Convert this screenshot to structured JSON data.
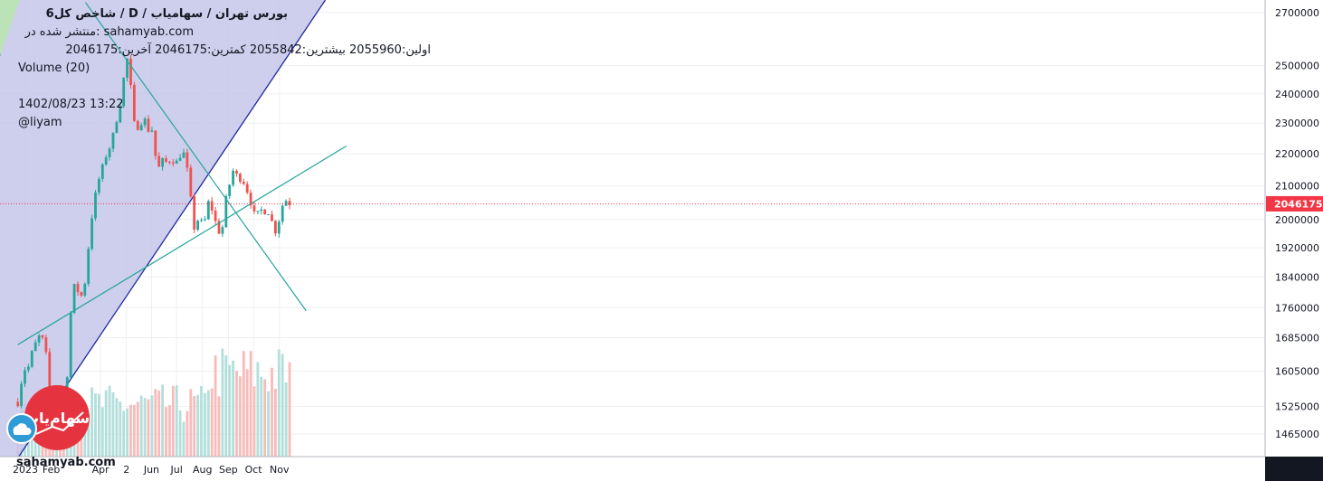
{
  "header": {
    "title": "شاخص کل6  / D  / بورس تهران / سهامیاب",
    "published_on": "منتشر شده در: sahamyab.com",
    "ohlc": "اولین:2055960  بیشترین:2055842  کمترین:2046175  آخرین:2046175",
    "volume_label": "Volume (20)",
    "datetime": "1402/08/23 13:22",
    "author": "@liyam"
  },
  "watermark": {
    "site": "sahamyab.com",
    "logo_text": "سهام‌یاب"
  },
  "colors": {
    "up": "#26a69a",
    "down": "#ef5350",
    "up_volume": "#b2dfdb",
    "down_volume": "#f8bbb9",
    "channel_fill": "#c5c5ea",
    "channel_line": "#1e2a9c",
    "trendline": "#26a69a",
    "last_price": "#f23645",
    "logo": "#e5343f"
  },
  "chart_data": {
    "type": "candlestick",
    "scale": "log",
    "timeframe": "D",
    "ylim": [
      1418000,
      2750000
    ],
    "y_ticks": [
      2700000,
      2500000,
      2400000,
      2300000,
      2200000,
      2100000,
      2000000,
      1920000,
      1840000,
      1760000,
      1685000,
      1605000,
      1525000,
      1465000
    ],
    "x_ticks": [
      {
        "label": "2023",
        "date": "2023-01-01"
      },
      {
        "label": "Feb",
        "date": "2023-02-01"
      },
      {
        "label": "Apr",
        "date": "2023-04-01"
      },
      {
        "label": "2",
        "date": "2023-05-02"
      },
      {
        "label": "Jun",
        "date": "2023-06-01"
      },
      {
        "label": "Jul",
        "date": "2023-07-01"
      },
      {
        "label": "Aug",
        "date": "2023-08-01"
      },
      {
        "label": "Sep",
        "date": "2023-09-01"
      },
      {
        "label": "Oct",
        "date": "2023-10-01"
      },
      {
        "label": "Nov",
        "date": "2023-11-01"
      }
    ],
    "last_price": 2046175,
    "close_path": [
      [
        "2022-12-23",
        1535000
      ],
      [
        "2022-12-28",
        1590000
      ],
      [
        "2023-01-02",
        1620000
      ],
      [
        "2023-01-06",
        1612000
      ],
      [
        "2023-01-10",
        1660000
      ],
      [
        "2023-01-14",
        1672000
      ],
      [
        "2023-01-18",
        1690000
      ],
      [
        "2023-01-22",
        1678000
      ],
      [
        "2023-01-26",
        1640000
      ],
      [
        "2023-01-30",
        1558000
      ],
      [
        "2023-02-03",
        1548000
      ],
      [
        "2023-02-08",
        1552000
      ],
      [
        "2023-02-13",
        1543000
      ],
      [
        "2023-02-17",
        1530000
      ],
      [
        "2023-02-20",
        1595000
      ],
      [
        "2023-02-23",
        1705000
      ],
      [
        "2023-02-26",
        1800000
      ],
      [
        "2023-03-01",
        1815000
      ],
      [
        "2023-03-06",
        1800000
      ],
      [
        "2023-03-11",
        1785000
      ],
      [
        "2023-03-15",
        1860000
      ],
      [
        "2023-03-20",
        1985000
      ],
      [
        "2023-03-25",
        2060000
      ],
      [
        "2023-03-30",
        2120000
      ],
      [
        "2023-04-04",
        2160000
      ],
      [
        "2023-04-09",
        2210000
      ],
      [
        "2023-04-14",
        2230000
      ],
      [
        "2023-04-19",
        2300000
      ],
      [
        "2023-04-24",
        2360000
      ],
      [
        "2023-04-28",
        2440000
      ],
      [
        "2023-05-02",
        2515000
      ],
      [
        "2023-05-05",
        2540000
      ],
      [
        "2023-05-09",
        2320000
      ],
      [
        "2023-05-13",
        2280000
      ],
      [
        "2023-05-18",
        2300000
      ],
      [
        "2023-05-23",
        2320000
      ],
      [
        "2023-05-27",
        2275000
      ],
      [
        "2023-06-01",
        2290000
      ],
      [
        "2023-06-05",
        2200000
      ],
      [
        "2023-06-10",
        2155000
      ],
      [
        "2023-06-15",
        2180000
      ],
      [
        "2023-06-20",
        2170000
      ],
      [
        "2023-06-25",
        2190000
      ],
      [
        "2023-06-30",
        2165000
      ],
      [
        "2023-07-04",
        2195000
      ],
      [
        "2023-07-09",
        2205000
      ],
      [
        "2023-07-13",
        2160000
      ],
      [
        "2023-07-17",
        2085000
      ],
      [
        "2023-07-21",
        1970000
      ],
      [
        "2023-07-26",
        2000000
      ],
      [
        "2023-07-30",
        1990000
      ],
      [
        "2023-08-03",
        1985000
      ],
      [
        "2023-08-07",
        2050000
      ],
      [
        "2023-08-11",
        2045000
      ],
      [
        "2023-08-15",
        2000000
      ],
      [
        "2023-08-19",
        1980000
      ],
      [
        "2023-08-23",
        1948000
      ],
      [
        "2023-08-26",
        1995000
      ],
      [
        "2023-08-30",
        2075000
      ],
      [
        "2023-09-03",
        2110000
      ],
      [
        "2023-09-07",
        2150000
      ],
      [
        "2023-09-11",
        2130000
      ],
      [
        "2023-09-15",
        2125000
      ],
      [
        "2023-09-19",
        2115000
      ],
      [
        "2023-09-23",
        2090000
      ],
      [
        "2023-09-27",
        2060000
      ],
      [
        "2023-10-01",
        2015000
      ],
      [
        "2023-10-05",
        2010000
      ],
      [
        "2023-10-09",
        2025000
      ],
      [
        "2023-10-13",
        2030000
      ],
      [
        "2023-10-17",
        2020000
      ],
      [
        "2023-10-21",
        2030000
      ],
      [
        "2023-10-25",
        1960000
      ],
      [
        "2023-10-29",
        1975000
      ],
      [
        "2023-11-02",
        2015000
      ],
      [
        "2023-11-06",
        2055000
      ],
      [
        "2023-11-10",
        2058000
      ],
      [
        "2023-11-14",
        2046175
      ]
    ],
    "channel": {
      "lower": [
        [
          "2022-12-01",
          1360000
        ],
        [
          "2023-12-26",
          2750000
        ]
      ],
      "upper_top_date": "2023-03-11"
    },
    "trendlines": [
      {
        "points": [
          [
            "2022-12-23",
            1668000
          ],
          [
            "2024-01-20",
            2225000
          ]
        ]
      },
      {
        "points": [
          [
            "2023-03-14",
            2740000
          ],
          [
            "2023-12-03",
            1752000
          ]
        ]
      }
    ],
    "volume_panel": {
      "min": 0,
      "max": 100
    }
  }
}
